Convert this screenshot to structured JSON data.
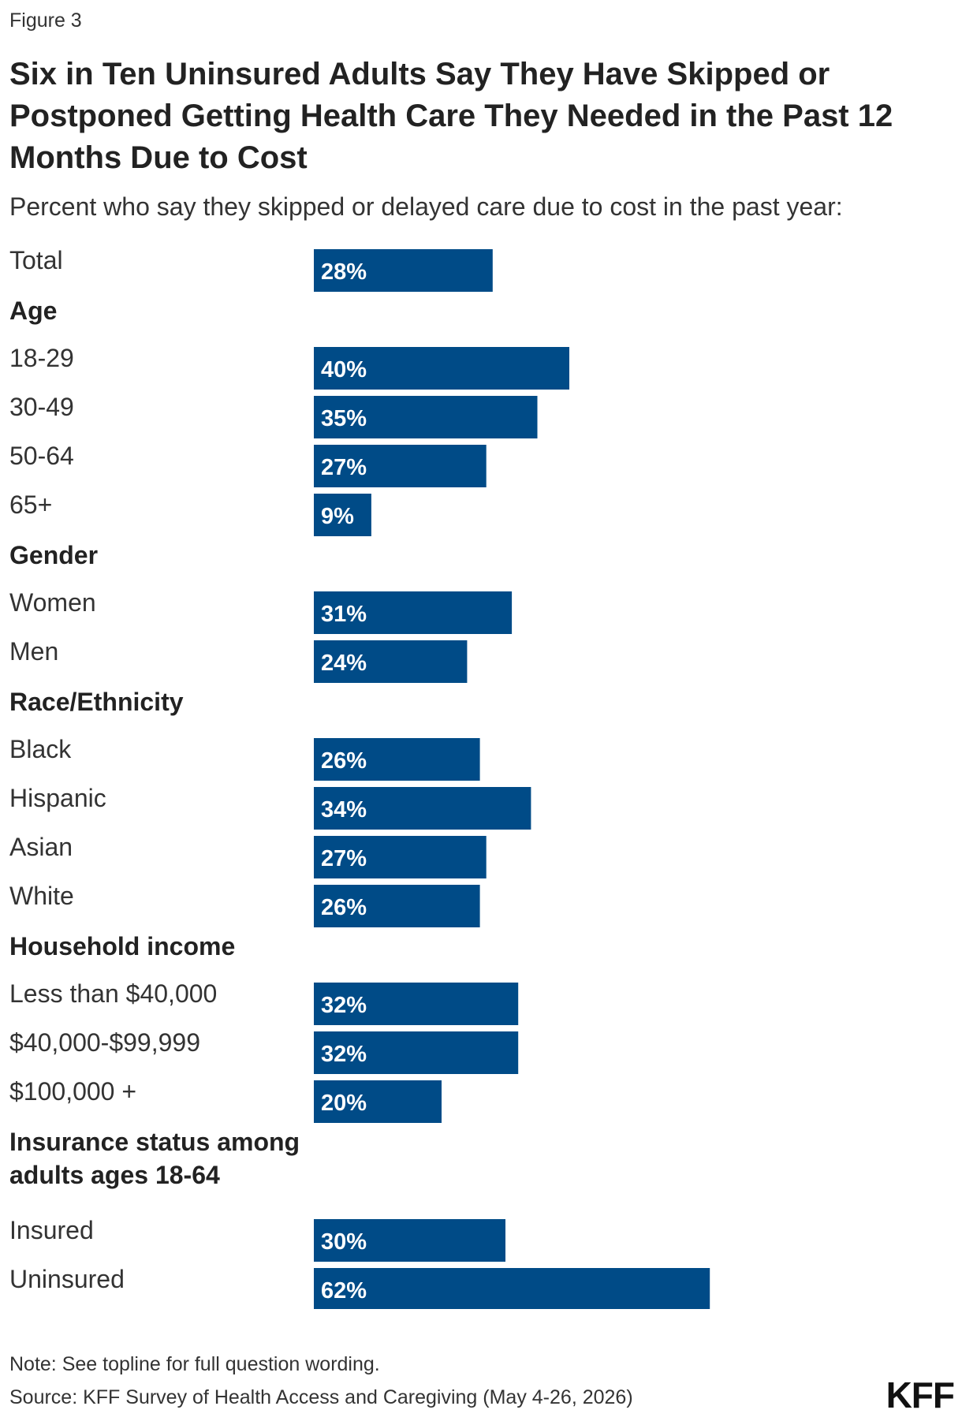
{
  "figure_label": "Figure 3",
  "title": "Six in Ten Uninsured Adults Say They Have Skipped or Postponed Getting Health Care They Needed in the Past 12 Months Due to Cost",
  "subtitle": "Percent who say they skipped or delayed care due to cost in the past year:",
  "note": "Note: See topline for full question wording.",
  "source": "Source: KFF Survey of Health Access and Caregiving (May 4-26, 2026)",
  "logo": "KFF",
  "colors": {
    "bar": "#004b87",
    "bar_label": "#ffffff"
  },
  "chart_data": {
    "type": "bar",
    "orientation": "horizontal",
    "value_suffix": "%",
    "xlim": [
      0,
      100
    ],
    "grid": false,
    "rows": [
      {
        "kind": "bar",
        "label": "Total",
        "value": 28
      },
      {
        "kind": "section",
        "label": "Age"
      },
      {
        "kind": "bar",
        "label": "18-29",
        "value": 40
      },
      {
        "kind": "bar",
        "label": "30-49",
        "value": 35
      },
      {
        "kind": "bar",
        "label": "50-64",
        "value": 27
      },
      {
        "kind": "bar",
        "label": "65+",
        "value": 9
      },
      {
        "kind": "section",
        "label": "Gender"
      },
      {
        "kind": "bar",
        "label": "Women",
        "value": 31
      },
      {
        "kind": "bar",
        "label": "Men",
        "value": 24
      },
      {
        "kind": "section",
        "label": "Race/Ethnicity"
      },
      {
        "kind": "bar",
        "label": "Black",
        "value": 26
      },
      {
        "kind": "bar",
        "label": "Hispanic",
        "value": 34
      },
      {
        "kind": "bar",
        "label": "Asian",
        "value": 27
      },
      {
        "kind": "bar",
        "label": "White",
        "value": 26
      },
      {
        "kind": "section",
        "label": "Household income"
      },
      {
        "kind": "bar",
        "label": "Less than $40,000",
        "value": 32
      },
      {
        "kind": "bar",
        "label": "$40,000-$99,999",
        "value": 32
      },
      {
        "kind": "bar",
        "label": "$100,000 +",
        "value": 20
      },
      {
        "kind": "section",
        "label": [
          "Insurance status among",
          "adults ages 18-64"
        ]
      },
      {
        "kind": "bar",
        "label": "Insured",
        "value": 30
      },
      {
        "kind": "bar",
        "label": "Uninsured",
        "value": 62
      }
    ]
  }
}
